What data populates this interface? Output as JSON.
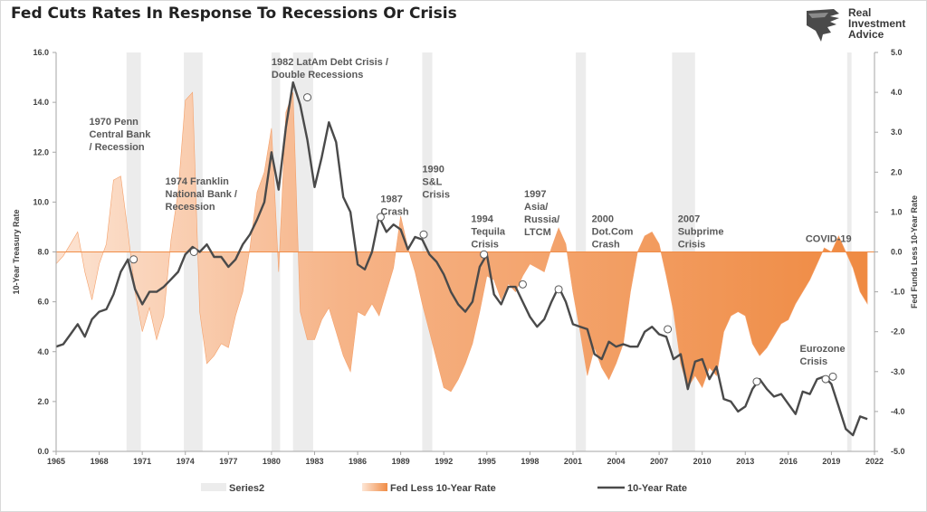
{
  "title": "Fed Cuts Rates In Response To Recessions Or Crisis",
  "logo": {
    "lines": [
      "Real",
      "Investment",
      "Advice"
    ],
    "icon": "eagle-icon"
  },
  "chart_data": {
    "type": "line",
    "title": "Fed Cuts Rates In Response To Recessions Or Crisis",
    "xlabel": "",
    "ylabel": "10-Year Treasury Rate",
    "y2label": "Fed Funds Less 10-Year Rate",
    "xlim": [
      1965,
      2022
    ],
    "ylim": [
      0,
      16
    ],
    "y2lim": [
      -5,
      5
    ],
    "x_ticks": [
      1965,
      1968,
      1971,
      1974,
      1977,
      1980,
      1983,
      1986,
      1989,
      1992,
      1995,
      1998,
      2001,
      2004,
      2007,
      2010,
      2013,
      2016,
      2019,
      2022
    ],
    "y_ticks": [
      0,
      2,
      4,
      6,
      8,
      10,
      12,
      14,
      16
    ],
    "y2_ticks": [
      -5,
      -4,
      -3,
      -2,
      -1,
      0,
      1,
      2,
      3,
      4,
      5
    ],
    "y_tick_labels": [
      "0.0",
      "2.0",
      "4.0",
      "6.0",
      "8.0",
      "10.0",
      "12.0",
      "14.0",
      "16.0"
    ],
    "y2_tick_labels": [
      "-5.0",
      "-4.0",
      "-3.0",
      "-2.0",
      "-1.0",
      "0.0",
      "1.0",
      "2.0",
      "3.0",
      "4.0",
      "5.0"
    ],
    "grid": false,
    "legend": "bottom",
    "legend_entries": [
      {
        "name": "Series2",
        "color": "#ececec",
        "kind": "box"
      },
      {
        "name": "Fed Less 10-Year Rate",
        "color": "#f08c46",
        "kind": "area"
      },
      {
        "name": "10-Year Rate",
        "color": "#4a4a4a",
        "kind": "line"
      }
    ],
    "recessions": [
      [
        1969.9,
        1970.9
      ],
      [
        1973.9,
        1975.2
      ],
      [
        1980.0,
        1980.6
      ],
      [
        1981.5,
        1982.9
      ],
      [
        1990.5,
        1991.2
      ],
      [
        2001.2,
        2001.9
      ],
      [
        2007.9,
        2009.5
      ],
      [
        2020.1,
        2020.4
      ]
    ],
    "series": [
      {
        "name": "10-Year Rate",
        "color": "#4a4a4a",
        "x": [
          1965,
          1965.5,
          1966,
          1966.5,
          1967,
          1967.5,
          1968,
          1968.5,
          1969,
          1969.5,
          1970,
          1970.5,
          1971,
          1971.5,
          1972,
          1972.5,
          1973,
          1973.5,
          1974,
          1974.5,
          1975,
          1975.5,
          1976,
          1976.5,
          1977,
          1977.5,
          1978,
          1978.5,
          1979,
          1979.5,
          1980,
          1980.5,
          1981,
          1981.5,
          1982,
          1982.5,
          1983,
          1983.5,
          1984,
          1984.5,
          1985,
          1985.5,
          1986,
          1986.5,
          1987,
          1987.5,
          1988,
          1988.5,
          1989,
          1989.5,
          1990,
          1990.5,
          1991,
          1991.5,
          1992,
          1992.5,
          1993,
          1993.5,
          1994,
          1994.5,
          1995,
          1995.5,
          1996,
          1996.5,
          1997,
          1997.5,
          1998,
          1998.5,
          1999,
          1999.5,
          2000,
          2000.5,
          2001,
          2001.5,
          2002,
          2002.5,
          2003,
          2003.5,
          2004,
          2004.5,
          2005,
          2005.5,
          2006,
          2006.5,
          2007,
          2007.5,
          2008,
          2008.5,
          2009,
          2009.5,
          2010,
          2010.5,
          2011,
          2011.5,
          2012,
          2012.5,
          2013,
          2013.5,
          2014,
          2014.5,
          2015,
          2015.5,
          2016,
          2016.5,
          2017,
          2017.5,
          2018,
          2018.5,
          2019,
          2019.5,
          2020,
          2020.5,
          2021,
          2021.5
        ],
        "values": [
          4.2,
          4.3,
          4.7,
          5.1,
          4.6,
          5.3,
          5.6,
          5.7,
          6.3,
          7.2,
          7.7,
          6.5,
          5.9,
          6.4,
          6.4,
          6.6,
          6.9,
          7.2,
          7.9,
          8.2,
          8.0,
          8.3,
          7.8,
          7.8,
          7.4,
          7.7,
          8.3,
          8.7,
          9.3,
          10.0,
          12.0,
          10.5,
          13.0,
          14.8,
          13.9,
          12.5,
          10.6,
          11.8,
          13.2,
          12.4,
          10.2,
          9.6,
          7.5,
          7.3,
          8.0,
          9.4,
          8.8,
          9.1,
          8.9,
          8.1,
          8.6,
          8.5,
          7.9,
          7.6,
          7.1,
          6.4,
          5.9,
          5.6,
          6.0,
          7.4,
          7.9,
          6.3,
          5.9,
          6.6,
          6.6,
          6.0,
          5.4,
          5.0,
          5.3,
          6.0,
          6.6,
          6.0,
          5.1,
          5.0,
          4.9,
          3.9,
          3.7,
          4.4,
          4.2,
          4.3,
          4.2,
          4.2,
          4.8,
          5.0,
          4.7,
          4.6,
          3.7,
          3.9,
          2.5,
          3.6,
          3.7,
          2.9,
          3.4,
          2.1,
          2.0,
          1.6,
          1.8,
          2.5,
          2.9,
          2.5,
          2.2,
          2.3,
          1.9,
          1.5,
          2.4,
          2.3,
          2.9,
          3.0,
          2.7,
          1.8,
          0.9,
          0.65,
          1.4,
          1.3
        ]
      },
      {
        "name": "Fed Less 10-Year Rate",
        "color": "#f08c46",
        "axis": "right",
        "x": [
          1965,
          1965.5,
          1966,
          1966.5,
          1967,
          1967.5,
          1968,
          1968.5,
          1969,
          1969.5,
          1970,
          1970.5,
          1971,
          1971.5,
          1972,
          1972.5,
          1973,
          1973.5,
          1974,
          1974.5,
          1975,
          1975.5,
          1976,
          1976.5,
          1977,
          1977.5,
          1978,
          1978.5,
          1979,
          1979.5,
          1980,
          1980.5,
          1981,
          1981.5,
          1982,
          1982.5,
          1983,
          1983.5,
          1984,
          1984.5,
          1985,
          1985.5,
          1986,
          1986.5,
          1987,
          1987.5,
          1988,
          1988.5,
          1989,
          1989.5,
          1990,
          1990.5,
          1991,
          1991.5,
          1992,
          1992.5,
          1993,
          1993.5,
          1994,
          1994.5,
          1995,
          1995.5,
          1996,
          1996.5,
          1997,
          1997.5,
          1998,
          1998.5,
          1999,
          1999.5,
          2000,
          2000.5,
          2001,
          2001.5,
          2002,
          2002.5,
          2003,
          2003.5,
          2004,
          2004.5,
          2005,
          2005.5,
          2006,
          2006.5,
          2007,
          2007.5,
          2008,
          2008.5,
          2009,
          2009.5,
          2010,
          2010.5,
          2011,
          2011.5,
          2012,
          2012.5,
          2013,
          2013.5,
          2014,
          2014.5,
          2015,
          2015.5,
          2016,
          2016.5,
          2017,
          2017.5,
          2018,
          2018.5,
          2019,
          2019.5,
          2020,
          2020.5,
          2021,
          2021.5
        ],
        "values": [
          -0.3,
          -0.1,
          0.2,
          0.5,
          -0.5,
          -1.2,
          -0.3,
          0.2,
          1.8,
          1.9,
          0.5,
          -1.0,
          -2.0,
          -1.4,
          -2.2,
          -1.6,
          0.3,
          1.5,
          3.8,
          4.0,
          -1.5,
          -2.8,
          -2.6,
          -2.3,
          -2.4,
          -1.6,
          -1.0,
          0.1,
          1.5,
          2.0,
          3.1,
          -0.5,
          3.5,
          4.0,
          -1.5,
          -2.2,
          -2.2,
          -1.7,
          -1.4,
          -2.0,
          -2.6,
          -3.0,
          -1.5,
          -1.6,
          -1.3,
          -1.6,
          -1.0,
          -0.4,
          0.9,
          0.1,
          -0.5,
          -1.3,
          -2.0,
          -2.7,
          -3.4,
          -3.5,
          -3.2,
          -2.8,
          -2.3,
          -1.5,
          -0.6,
          -0.7,
          -1.2,
          -0.8,
          -1.0,
          -0.6,
          -0.3,
          -0.4,
          -0.5,
          0.1,
          0.6,
          0.2,
          -1.0,
          -2.0,
          -3.1,
          -2.4,
          -2.9,
          -3.2,
          -2.8,
          -2.3,
          -1.0,
          0.0,
          0.4,
          0.5,
          0.2,
          -0.6,
          -1.5,
          -2.8,
          -3.4,
          -3.1,
          -3.4,
          -2.9,
          -3.1,
          -2.0,
          -1.6,
          -1.5,
          -1.6,
          -2.3,
          -2.6,
          -2.4,
          -2.1,
          -1.8,
          -1.7,
          -1.3,
          -1.0,
          -0.7,
          -0.3,
          0.1,
          0.0,
          0.4,
          0.0,
          -0.4,
          -1.0,
          -1.3
        ]
      }
    ],
    "event_markers": [
      {
        "x": 1970.4,
        "y": 7.7
      },
      {
        "x": 1974.6,
        "y": 8.0
      },
      {
        "x": 1982.5,
        "y": 14.2
      },
      {
        "x": 1987.6,
        "y": 9.4
      },
      {
        "x": 1990.6,
        "y": 8.7
      },
      {
        "x": 1994.8,
        "y": 7.9
      },
      {
        "x": 1997.5,
        "y": 6.7
      },
      {
        "x": 2000.0,
        "y": 6.5
      },
      {
        "x": 2007.6,
        "y": 4.9
      },
      {
        "x": 2013.8,
        "y": 2.8
      },
      {
        "x": 2018.6,
        "y": 2.9
      },
      {
        "x": 2019.1,
        "y": 3.0
      }
    ],
    "annotations": [
      {
        "lines": [
          "1970 Penn",
          "Central Bank",
          "/ Recession"
        ],
        "x": 1967.3,
        "y": 13.1
      },
      {
        "lines": [
          "1974 Franklin",
          "National Bank /",
          "Recession"
        ],
        "x": 1972.6,
        "y": 10.7
      },
      {
        "lines": [
          "1982 LatAm Debt Crisis /",
          "Double Recessions"
        ],
        "x": 1980.0,
        "y": 15.5
      },
      {
        "lines": [
          "1987",
          "Crash"
        ],
        "x": 1987.6,
        "y": 10.0
      },
      {
        "lines": [
          "1990",
          "S&L",
          "Crisis"
        ],
        "x": 1990.5,
        "y": 11.2
      },
      {
        "lines": [
          "1994",
          "Tequila",
          "Crisis"
        ],
        "x": 1993.9,
        "y": 9.2
      },
      {
        "lines": [
          "1997",
          "Asia/",
          "Russia/",
          "LTCM"
        ],
        "x": 1997.6,
        "y": 10.2
      },
      {
        "lines": [
          "2000",
          "Dot.Com",
          "Crash"
        ],
        "x": 2002.3,
        "y": 9.2
      },
      {
        "lines": [
          "2007",
          "Subprime",
          "Crisis"
        ],
        "x": 2008.3,
        "y": 9.2
      },
      {
        "lines": [
          "COVID-19"
        ],
        "x": 2017.2,
        "y": 8.4
      },
      {
        "lines": [
          "Eurozone",
          "Crisis"
        ],
        "x": 2016.8,
        "y": 4.0
      }
    ]
  },
  "colors": {
    "recession": "#ececec",
    "area_dark": "#f08c46",
    "area_light": "#fde9dc",
    "line": "#4a4a4a",
    "zero_line": "#f08c46"
  }
}
